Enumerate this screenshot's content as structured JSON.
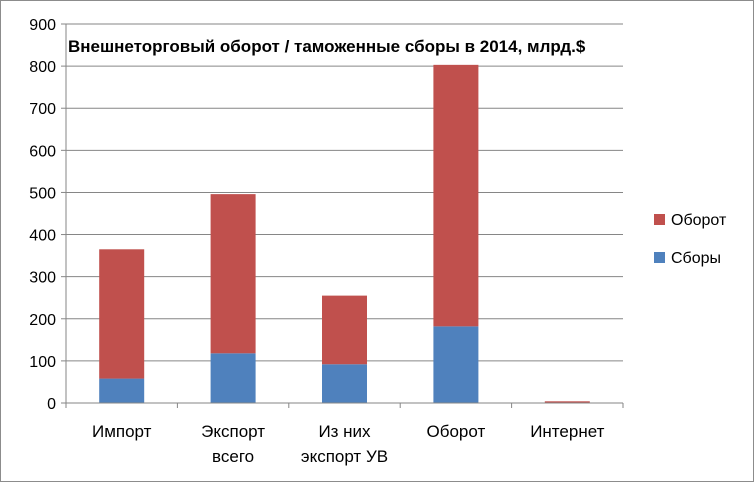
{
  "chart_data": {
    "type": "bar",
    "stacked": true,
    "title": "Внешнеторговый оборот / таможенные сборы в 2014, млрд.$",
    "categories": [
      [
        "Импорт"
      ],
      [
        "Экспорт",
        "всего"
      ],
      [
        "Из них",
        "экспорт УВ"
      ],
      [
        "Оборот"
      ],
      [
        "Интернет"
      ]
    ],
    "series": [
      {
        "name": "Сборы",
        "color": "#4f81bd",
        "values": [
          58,
          118,
          92,
          182,
          1
        ]
      },
      {
        "name": "Оборот",
        "color": "#c0504d",
        "values": [
          307,
          378,
          163,
          621,
          3
        ]
      }
    ],
    "ylim": [
      0,
      900
    ],
    "yticks": [
      0,
      100,
      200,
      300,
      400,
      500,
      600,
      700,
      800,
      900
    ],
    "grid": true,
    "legend": "right"
  }
}
